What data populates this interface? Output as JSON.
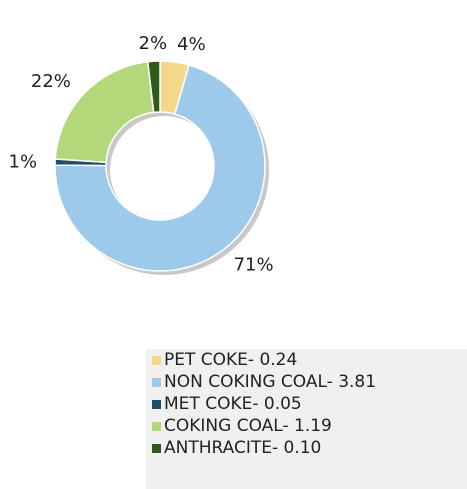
{
  "chart_data": {
    "type": "pie",
    "donut": true,
    "slices": [
      {
        "label": "PET COKE",
        "value": 0.24,
        "percent_label": "4%",
        "color": "#f5d78a"
      },
      {
        "label": "NON COKING COAL",
        "value": 3.81,
        "percent_label": "71%",
        "color": "#9dcaea"
      },
      {
        "label": "MET COKE",
        "value": 0.05,
        "percent_label": "1%",
        "color": "#1f4e6b"
      },
      {
        "label": "COKING COAL",
        "value": 1.19,
        "percent_label": "22%",
        "color": "#b3d87a"
      },
      {
        "label": "ANTHRACITE",
        "value": 0.1,
        "percent_label": "2%",
        "color": "#2e5a1c"
      }
    ],
    "legend": [
      "PET COKE- 0.24",
      "NON COKING COAL- 3.81",
      "MET COKE- 0.05",
      "COKING COAL- 1.19",
      "ANTHRACITE- 0.10"
    ],
    "legend_placement": "bottom-right"
  }
}
